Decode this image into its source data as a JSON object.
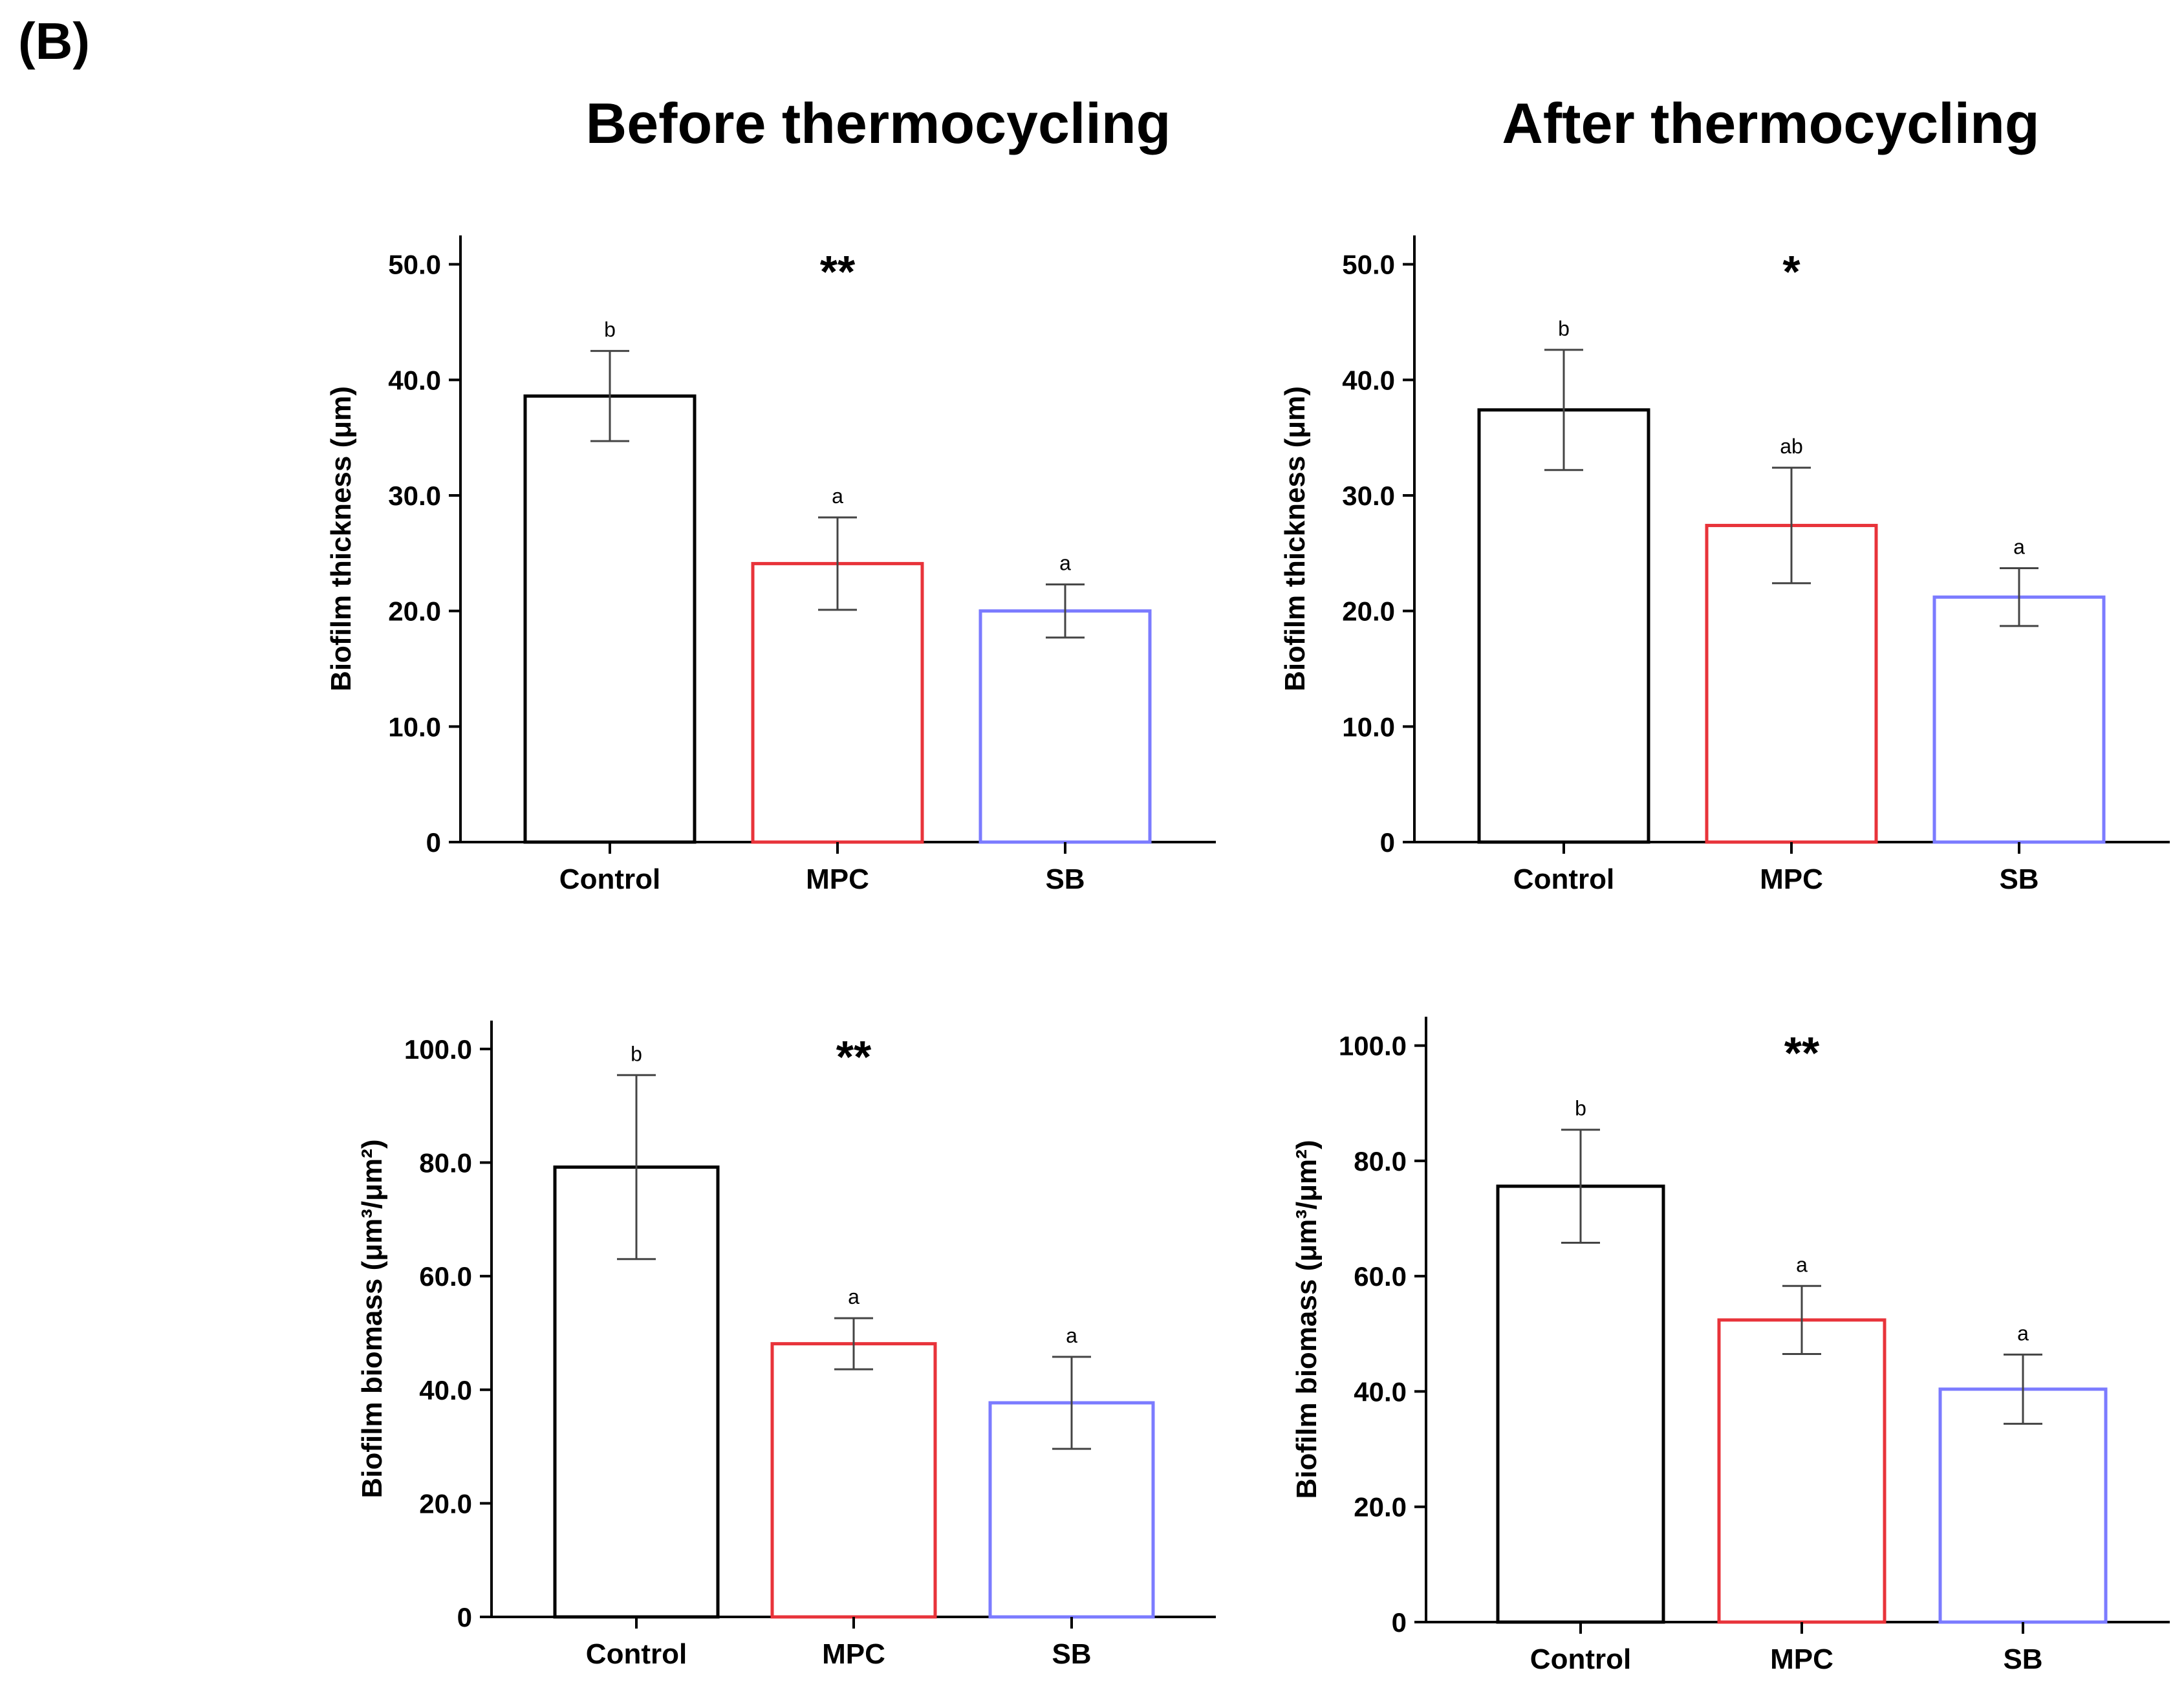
{
  "figure": {
    "panel_label": "(B)",
    "column_titles": [
      "Before thermocycling",
      "After thermocycling"
    ]
  },
  "colors": {
    "Control": "#000000",
    "MPC": "#e8333a",
    "SB": "#7b7bff"
  },
  "chart_data": [
    {
      "type": "bar",
      "column": "Before thermocycling",
      "ylabel": "Biofilm thickness (μm)",
      "categories": [
        "Control",
        "MPC",
        "SB"
      ],
      "values": [
        38.6,
        24.1,
        20.0
      ],
      "errors": [
        3.9,
        4.0,
        2.3
      ],
      "letters": [
        "b",
        "a",
        "a"
      ],
      "significance": "**",
      "ylim": [
        0,
        52.5
      ],
      "yticks": [
        0,
        10,
        20,
        30,
        40,
        50
      ],
      "ytick_labels": [
        "0",
        "10.0",
        "20.0",
        "30.0",
        "40.0",
        "50.0"
      ]
    },
    {
      "type": "bar",
      "column": "After thermocycling",
      "ylabel": "Biofilm thickness (μm)",
      "categories": [
        "Control",
        "MPC",
        "SB"
      ],
      "values": [
        37.4,
        27.4,
        21.2
      ],
      "errors": [
        5.2,
        5.0,
        2.5
      ],
      "letters": [
        "b",
        "ab",
        "a"
      ],
      "significance": "*",
      "ylim": [
        0,
        52.5
      ],
      "yticks": [
        0,
        10,
        20,
        30,
        40,
        50
      ],
      "ytick_labels": [
        "0",
        "10.0",
        "20.0",
        "30.0",
        "40.0",
        "50.0"
      ]
    },
    {
      "type": "bar",
      "column": "Before thermocycling",
      "ylabel": "Biofilm biomass (μm³/μm²)",
      "categories": [
        "Control",
        "MPC",
        "SB"
      ],
      "values": [
        79.2,
        48.1,
        37.7
      ],
      "errors": [
        16.2,
        4.5,
        8.1
      ],
      "letters": [
        "b",
        "a",
        "a"
      ],
      "significance": "**",
      "ylim": [
        0,
        105
      ],
      "yticks": [
        0,
        20,
        40,
        60,
        80,
        100
      ],
      "ytick_labels": [
        "0",
        "20.0",
        "40.0",
        "60.0",
        "80.0",
        "100.0"
      ]
    },
    {
      "type": "bar",
      "column": "After thermocycling",
      "ylabel": "Biofilm biomass (μm³/μm²)",
      "categories": [
        "Control",
        "MPC",
        "SB"
      ],
      "values": [
        75.6,
        52.4,
        40.4
      ],
      "errors": [
        9.8,
        5.9,
        6.0
      ],
      "letters": [
        "b",
        "a",
        "a"
      ],
      "significance": "**",
      "ylim": [
        0,
        105
      ],
      "yticks": [
        0,
        20,
        40,
        60,
        80,
        100
      ],
      "ytick_labels": [
        "0",
        "20.0",
        "40.0",
        "60.0",
        "80.0",
        "100.0"
      ]
    }
  ]
}
